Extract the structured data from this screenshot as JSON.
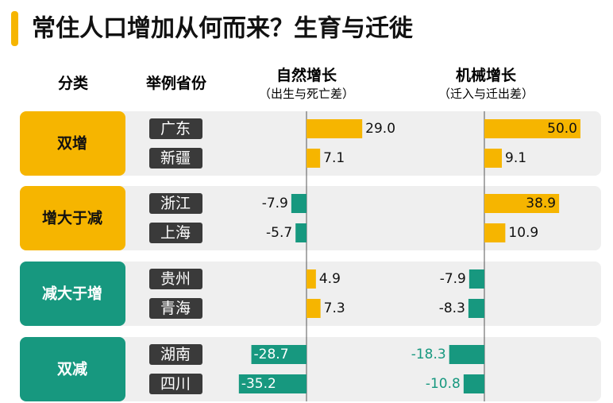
{
  "chart_data": {
    "type": "bar",
    "title": "常住人口增加从何而来？生育与迁徙",
    "headers": {
      "category": "分类",
      "example": "举例省份",
      "natural": "自然增长",
      "natural_note": "（出生与死亡差）",
      "mechanical": "机械增长",
      "mechanical_note": "（迁入与迁出差）"
    },
    "groups": [
      {
        "label": "双增",
        "categories": [
          "广东",
          "新疆"
        ]
      },
      {
        "label": "增大于减",
        "categories": [
          "浙江",
          "上海"
        ]
      },
      {
        "label": "减大于增",
        "categories": [
          "贵州",
          "青海"
        ]
      },
      {
        "label": "双减",
        "categories": [
          "湖南",
          "四川"
        ]
      }
    ],
    "colors": {
      "positive": "#f6b500",
      "negative": "#17987f"
    },
    "series": [
      {
        "name": "自然增长",
        "values": [
          29.0,
          7.1,
          -7.9,
          -5.7,
          4.9,
          7.3,
          -28.7,
          -35.2
        ],
        "value_labels": [
          "29.0",
          "7.1",
          "-7.9",
          "-5.7",
          "4.9",
          "7.3",
          "-28.7",
          "-35.2"
        ]
      },
      {
        "name": "机械增长",
        "values": [
          50.0,
          9.1,
          38.9,
          10.9,
          -7.9,
          -8.3,
          -18.3,
          -10.8
        ],
        "value_labels": [
          "50.0",
          "9.1",
          "38.9",
          "10.9",
          "-7.9",
          "-8.3",
          "-18.3",
          "-10.8"
        ]
      }
    ]
  }
}
